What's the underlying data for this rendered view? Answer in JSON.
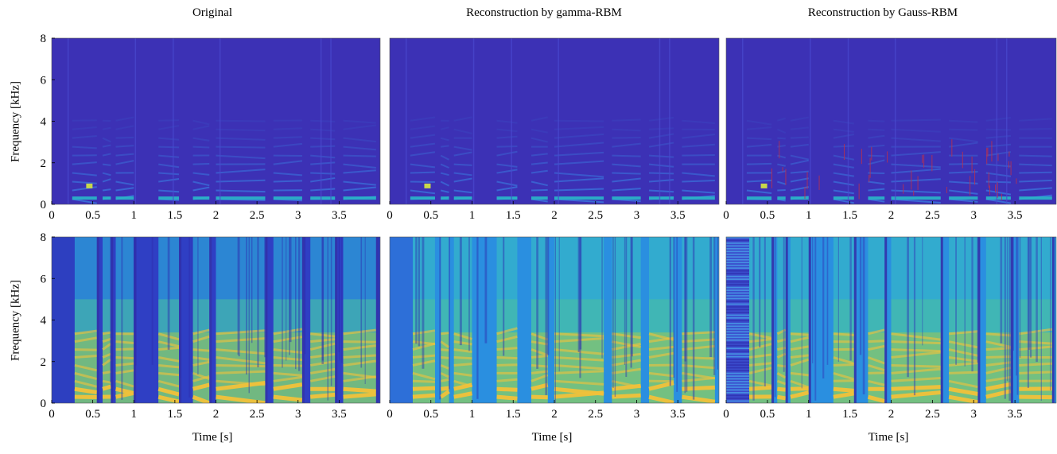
{
  "figure": {
    "columns": [
      {
        "title": "Original"
      },
      {
        "title": "Reconstruction by gamma-RBM"
      },
      {
        "title": "Reconstruction by Gauss-RBM"
      }
    ],
    "row_ylabel": "Frequency [kHz]",
    "col_xlabel": "Time [s]"
  },
  "chart_data": [
    {
      "type": "heatmap",
      "row": 1,
      "col": 1,
      "title": "Original",
      "xlabel": "",
      "ylabel": "Frequency [kHz]",
      "xlim": [
        0,
        4
      ],
      "ylim": [
        0,
        8
      ],
      "xticks": [
        "0",
        "0.5",
        "1",
        "1.5",
        "2",
        "2.5",
        "3",
        "3.5"
      ],
      "yticks": [
        "0",
        "2",
        "4",
        "6",
        "8"
      ],
      "colormap": "parula",
      "background_color": "#3c31b5",
      "harmonic_color": "#2ab8c8",
      "speech_onset_s": 0.25,
      "segments": [
        [
          0.25,
          0.55
        ],
        [
          0.62,
          0.72
        ],
        [
          0.78,
          1.0
        ],
        [
          1.3,
          1.55
        ],
        [
          1.72,
          1.92
        ],
        [
          2.0,
          2.6
        ],
        [
          2.7,
          3.05
        ],
        [
          3.15,
          3.45
        ],
        [
          3.55,
          3.95
        ]
      ]
    },
    {
      "type": "heatmap",
      "row": 1,
      "col": 2,
      "title": "Reconstruction by gamma-RBM",
      "xlabel": "",
      "ylabel": "",
      "xlim": [
        0,
        4
      ],
      "ylim": [
        0,
        8
      ],
      "xticks": [
        "0",
        "0.5",
        "1",
        "1.5",
        "2",
        "2.5",
        "3",
        "3.5"
      ],
      "yticks": [],
      "colormap": "parula",
      "background_color": "#3c31b5",
      "harmonic_color": "#2ab8c8",
      "speech_onset_s": 0.25,
      "segments": [
        [
          0.25,
          0.55
        ],
        [
          0.62,
          0.72
        ],
        [
          0.78,
          1.0
        ],
        [
          1.3,
          1.55
        ],
        [
          1.72,
          1.92
        ],
        [
          2.0,
          2.6
        ],
        [
          2.7,
          3.05
        ],
        [
          3.15,
          3.45
        ],
        [
          3.55,
          3.95
        ]
      ]
    },
    {
      "type": "heatmap",
      "row": 1,
      "col": 3,
      "title": "Reconstruction by Gauss-RBM",
      "xlabel": "",
      "ylabel": "",
      "xlim": [
        0,
        4
      ],
      "ylim": [
        0,
        8
      ],
      "xticks": [
        "0",
        "0.5",
        "1",
        "1.5",
        "2",
        "2.5",
        "3",
        "3.5"
      ],
      "yticks": [],
      "colormap": "parula",
      "background_color": "#3c31b5",
      "harmonic_color": "#2ab8c8",
      "artifact_color": "#c0304a",
      "speech_onset_s": 0.25,
      "segments": [
        [
          0.25,
          0.55
        ],
        [
          0.62,
          0.72
        ],
        [
          0.78,
          1.0
        ],
        [
          1.3,
          1.55
        ],
        [
          1.72,
          1.92
        ],
        [
          2.0,
          2.6
        ],
        [
          2.7,
          3.05
        ],
        [
          3.15,
          3.45
        ],
        [
          3.55,
          3.95
        ]
      ]
    },
    {
      "type": "heatmap",
      "row": 2,
      "col": 1,
      "title": "",
      "xlabel": "Time [s]",
      "ylabel": "Frequency [kHz]",
      "xlim": [
        0,
        4
      ],
      "ylim": [
        0,
        8
      ],
      "xticks": [
        "0",
        "0.5",
        "1",
        "1.5",
        "2",
        "2.5",
        "3",
        "3.5"
      ],
      "yticks": [
        "0",
        "2",
        "4",
        "6",
        "8"
      ],
      "colormap": "parula",
      "scale": "log",
      "background_color": "#2f3fc4",
      "harmonic_color": "#f2c23a",
      "speech_onset_s": 0.28,
      "segments": [
        [
          0.28,
          0.55
        ],
        [
          0.62,
          0.72
        ],
        [
          0.78,
          1.0
        ],
        [
          1.3,
          1.55
        ],
        [
          1.72,
          1.92
        ],
        [
          2.0,
          2.6
        ],
        [
          2.7,
          3.05
        ],
        [
          3.15,
          3.45
        ],
        [
          3.55,
          3.95
        ]
      ]
    },
    {
      "type": "heatmap",
      "row": 2,
      "col": 2,
      "title": "",
      "xlabel": "Time [s]",
      "ylabel": "",
      "xlim": [
        0,
        4
      ],
      "ylim": [
        0,
        8
      ],
      "xticks": [
        "0",
        "0.5",
        "1",
        "1.5",
        "2",
        "2.5",
        "3",
        "3.5"
      ],
      "yticks": [],
      "colormap": "parula",
      "scale": "log",
      "background_color": "#2a8fe0",
      "harmonic_color": "#f2c23a",
      "speech_onset_s": 0.28,
      "segments": [
        [
          0.28,
          0.55
        ],
        [
          0.62,
          0.72
        ],
        [
          0.78,
          1.0
        ],
        [
          1.3,
          1.55
        ],
        [
          1.72,
          1.92
        ],
        [
          2.0,
          2.6
        ],
        [
          2.7,
          3.05
        ],
        [
          3.15,
          3.45
        ],
        [
          3.55,
          3.95
        ]
      ]
    },
    {
      "type": "heatmap",
      "row": 2,
      "col": 3,
      "title": "",
      "xlabel": "Time [s]",
      "ylabel": "",
      "xlim": [
        0,
        4
      ],
      "ylim": [
        0,
        8
      ],
      "xticks": [
        "0",
        "0.5",
        "1",
        "1.5",
        "2",
        "2.5",
        "3",
        "3.5"
      ],
      "yticks": [],
      "colormap": "parula",
      "scale": "log",
      "background_color": "#2a8fe0",
      "harmonic_color": "#f2c23a",
      "noise_color": "#3236b8",
      "speech_onset_s": 0.28,
      "segments": [
        [
          0.28,
          0.55
        ],
        [
          0.62,
          0.72
        ],
        [
          0.78,
          1.0
        ],
        [
          1.3,
          1.55
        ],
        [
          1.72,
          1.92
        ],
        [
          2.0,
          2.6
        ],
        [
          2.7,
          3.05
        ],
        [
          3.15,
          3.45
        ],
        [
          3.55,
          3.95
        ]
      ]
    }
  ]
}
